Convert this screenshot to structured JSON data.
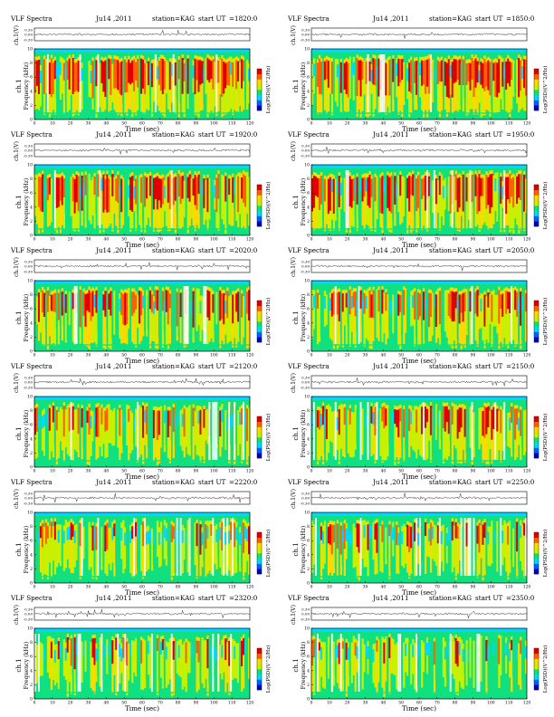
{
  "common": {
    "title_prefix": "VLF Spectra",
    "date": "Ju14 ,2011",
    "station_label": "station=KAG",
    "start_label": "start  UT",
    "waveform_ylabel": "ch.1(V)",
    "waveform_ticks": [
      "0.30",
      "0.00",
      "-0.30"
    ],
    "freq_ylabel_prefix": "ch.1",
    "freq_ylabel": "Frequency  (kHz)",
    "freq_ticks": [
      "0",
      "2",
      "4",
      "6",
      "8",
      "10"
    ],
    "time_ticks": [
      "0",
      "10",
      "20",
      "30",
      "40",
      "50",
      "60",
      "70",
      "80",
      "90",
      "100",
      "110",
      "120"
    ],
    "xlabel": "Time  (sec)",
    "colorbar_label": "Log(PSD)(V^2/Hz)",
    "colorbar_colors": [
      "#0000c0",
      "#0060ff",
      "#00d8ff",
      "#10e080",
      "#c8f000",
      "#ffd800",
      "#ff6000",
      "#e00000"
    ]
  },
  "chart_data": [
    {
      "type": "heatmap",
      "start_ut": "=1820:0",
      "title": "VLF Spectra  Ju14 ,2011  station=KAG  start UT =1820:0",
      "xlabel": "Time (sec)",
      "ylabel": "Frequency (kHz)",
      "xlim": [
        0,
        120
      ],
      "ylim": [
        0,
        10
      ],
      "waveform_ylim": [
        -0.3,
        0.3
      ],
      "activity": 0.62
    },
    {
      "type": "heatmap",
      "start_ut": "=1850:0",
      "title": "VLF Spectra  Ju14 ,2011  station=KAG  start UT =1850:0",
      "xlabel": "Time (sec)",
      "ylabel": "Frequency (kHz)",
      "xlim": [
        0,
        120
      ],
      "ylim": [
        0,
        10
      ],
      "waveform_ylim": [
        -0.3,
        0.3
      ],
      "activity": 0.6
    },
    {
      "type": "heatmap",
      "start_ut": "=1920:0",
      "title": "VLF Spectra  Ju14 ,2011  station=KAG  start UT =1920:0",
      "xlabel": "Time (sec)",
      "ylabel": "Frequency (kHz)",
      "xlim": [
        0,
        120
      ],
      "ylim": [
        0,
        10
      ],
      "waveform_ylim": [
        -0.3,
        0.3
      ],
      "activity": 0.58
    },
    {
      "type": "heatmap",
      "start_ut": "=1950:0",
      "title": "VLF Spectra  Ju14 ,2011  station=KAG  start UT =1950:0",
      "xlabel": "Time (sec)",
      "ylabel": "Frequency (kHz)",
      "xlim": [
        0,
        120
      ],
      "ylim": [
        0,
        10
      ],
      "waveform_ylim": [
        -0.3,
        0.3
      ],
      "activity": 0.6
    },
    {
      "type": "heatmap",
      "start_ut": "=2020:0",
      "title": "VLF Spectra  Ju14 ,2011  station=KAG  start UT =2020:0",
      "xlabel": "Time (sec)",
      "ylabel": "Frequency (kHz)",
      "xlim": [
        0,
        120
      ],
      "ylim": [
        0,
        10
      ],
      "waveform_ylim": [
        -0.3,
        0.3
      ],
      "activity": 0.5
    },
    {
      "type": "heatmap",
      "start_ut": "=2050:0",
      "title": "VLF Spectra  Ju14 ,2011  station=KAG  start UT =2050:0",
      "xlabel": "Time (sec)",
      "ylabel": "Frequency (kHz)",
      "xlim": [
        0,
        120
      ],
      "ylim": [
        0,
        10
      ],
      "waveform_ylim": [
        -0.3,
        0.3
      ],
      "activity": 0.48
    },
    {
      "type": "heatmap",
      "start_ut": "=2120:0",
      "title": "VLF Spectra  Ju14 ,2011  station=KAG  start UT =2120:0",
      "xlabel": "Time (sec)",
      "ylabel": "Frequency (kHz)",
      "xlim": [
        0,
        120
      ],
      "ylim": [
        0,
        10
      ],
      "waveform_ylim": [
        -0.3,
        0.3
      ],
      "activity": 0.4
    },
    {
      "type": "heatmap",
      "start_ut": "=2150:0",
      "title": "VLF Spectra  Ju14 ,2011  station=KAG  start UT =2150:0",
      "xlabel": "Time (sec)",
      "ylabel": "Frequency (kHz)",
      "xlim": [
        0,
        120
      ],
      "ylim": [
        0,
        10
      ],
      "waveform_ylim": [
        -0.3,
        0.3
      ],
      "activity": 0.38
    },
    {
      "type": "heatmap",
      "start_ut": "=2220:0",
      "title": "VLF Spectra  Ju14 ,2011  station=KAG  start UT =2220:0",
      "xlabel": "Time (sec)",
      "ylabel": "Frequency (kHz)",
      "xlim": [
        0,
        120
      ],
      "ylim": [
        0,
        10
      ],
      "waveform_ylim": [
        -0.3,
        0.3
      ],
      "activity": 0.32
    },
    {
      "type": "heatmap",
      "start_ut": "=2250:0",
      "title": "VLF Spectra  Ju14 ,2011  station=KAG  start UT =2250:0",
      "xlabel": "Time (sec)",
      "ylabel": "Frequency (kHz)",
      "xlim": [
        0,
        120
      ],
      "ylim": [
        0,
        10
      ],
      "waveform_ylim": [
        -0.3,
        0.3
      ],
      "activity": 0.3
    },
    {
      "type": "heatmap",
      "start_ut": "=2320:0",
      "title": "VLF Spectra  Ju14 ,2011  station=KAG  start UT =2320:0",
      "xlabel": "Time (sec)",
      "ylabel": "Frequency (kHz)",
      "xlim": [
        0,
        120
      ],
      "ylim": [
        0,
        10
      ],
      "waveform_ylim": [
        -0.3,
        0.3
      ],
      "activity": 0.26
    },
    {
      "type": "heatmap",
      "start_ut": "=2350:0",
      "title": "VLF Spectra  Ju14 ,2011  station=KAG  start UT =2350:0",
      "xlabel": "Time (sec)",
      "ylabel": "Frequency (kHz)",
      "xlim": [
        0,
        120
      ],
      "ylim": [
        0,
        10
      ],
      "waveform_ylim": [
        -0.3,
        0.3
      ],
      "activity": 0.22
    }
  ]
}
